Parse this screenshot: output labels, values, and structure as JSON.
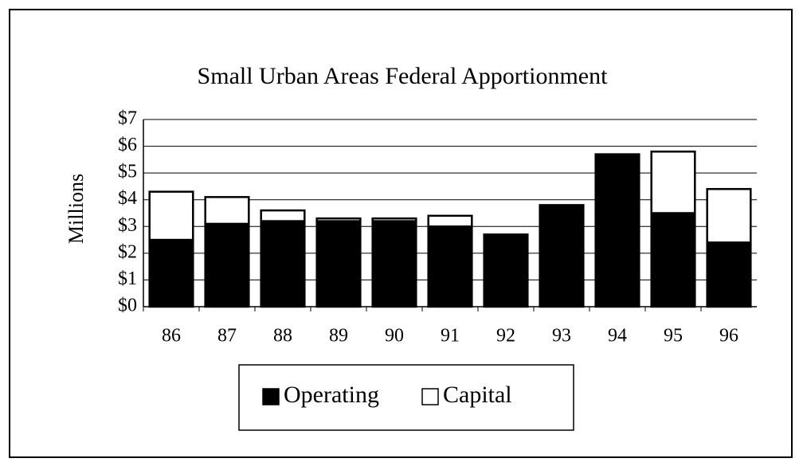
{
  "chart_data": {
    "type": "stacked_bar",
    "title": "Small Urban Areas Federal Apportionment",
    "y_label": "Millions",
    "categories": [
      "86",
      "87",
      "88",
      "89",
      "90",
      "91",
      "92",
      "93",
      "94",
      "95",
      "96"
    ],
    "series": [
      {
        "name": "Operating",
        "color": "#000000",
        "values": [
          2.5,
          3.1,
          3.2,
          3.2,
          3.2,
          3.0,
          2.7,
          3.8,
          5.7,
          3.5,
          2.4
        ]
      },
      {
        "name": "Capital",
        "color": "#ffffff",
        "values": [
          1.8,
          1.0,
          0.4,
          0.1,
          0.1,
          0.4,
          0,
          0,
          0,
          2.3,
          2.0
        ]
      }
    ],
    "ylim": [
      0,
      7
    ],
    "yticks": [
      {
        "value": 0,
        "label": "$0"
      },
      {
        "value": 1,
        "label": "$1"
      },
      {
        "value": 2,
        "label": "$2"
      },
      {
        "value": 3,
        "label": "$3"
      },
      {
        "value": 4,
        "label": "$4"
      },
      {
        "value": 5,
        "label": "$5"
      },
      {
        "value": 6,
        "label": "$6"
      },
      {
        "value": 7,
        "label": "$7"
      }
    ],
    "grid": true
  }
}
